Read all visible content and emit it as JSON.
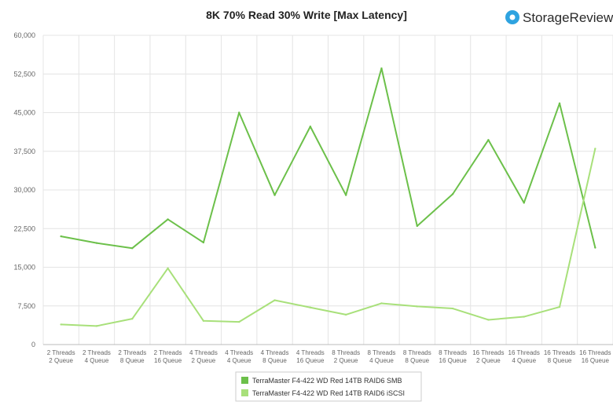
{
  "brand": {
    "name": "StorageReview",
    "logo_color": "#2ea3e0"
  },
  "chart_data": {
    "type": "line",
    "title": "8K 70% Read 30% Write [Max Latency]",
    "ylabel": "",
    "xlabel": "",
    "ylim": [
      0,
      60000
    ],
    "yticks": [
      "0",
      "7,500",
      "15,000",
      "22,500",
      "30,000",
      "37,500",
      "45,000",
      "52,500",
      "60,000"
    ],
    "ytick_values": [
      0,
      7500,
      15000,
      22500,
      30000,
      37500,
      45000,
      52500,
      60000
    ],
    "grid": true,
    "legend_position": "bottom",
    "categories": [
      [
        "2 Threads",
        "2 Queue"
      ],
      [
        "2 Threads",
        "4 Queue"
      ],
      [
        "2 Threads",
        "8 Queue"
      ],
      [
        "2 Threads",
        "16 Queue"
      ],
      [
        "4 Threads",
        "2 Queue"
      ],
      [
        "4 Threads",
        "4 Queue"
      ],
      [
        "4 Threads",
        "8 Queue"
      ],
      [
        "4 Threads",
        "16 Queue"
      ],
      [
        "8 Threads",
        "2 Queue"
      ],
      [
        "8 Threads",
        "4 Queue"
      ],
      [
        "8 Threads",
        "8 Queue"
      ],
      [
        "8 Threads",
        "16 Queue"
      ],
      [
        "16 Threads",
        "2 Queue"
      ],
      [
        "16 Threads",
        "4 Queue"
      ],
      [
        "16 Threads",
        "8 Queue"
      ],
      [
        "16 Threads",
        "16 Queue"
      ]
    ],
    "series": [
      {
        "name": "TerraMaster F4-422 WD Red 14TB RAID6 SMB",
        "color": "#6cc04a",
        "values": [
          21000,
          19700,
          18700,
          24300,
          19800,
          45000,
          29000,
          42300,
          29000,
          53600,
          23000,
          29200,
          39700,
          27500,
          46800,
          18800
        ]
      },
      {
        "name": "TerraMaster F4-422 WD Red 14TB RAID6 iSCSI",
        "color": "#a8e07a",
        "values": [
          3900,
          3600,
          5000,
          14800,
          4600,
          4400,
          8600,
          7200,
          5800,
          8000,
          7400,
          7000,
          4800,
          5400,
          7300,
          38000
        ]
      }
    ]
  }
}
